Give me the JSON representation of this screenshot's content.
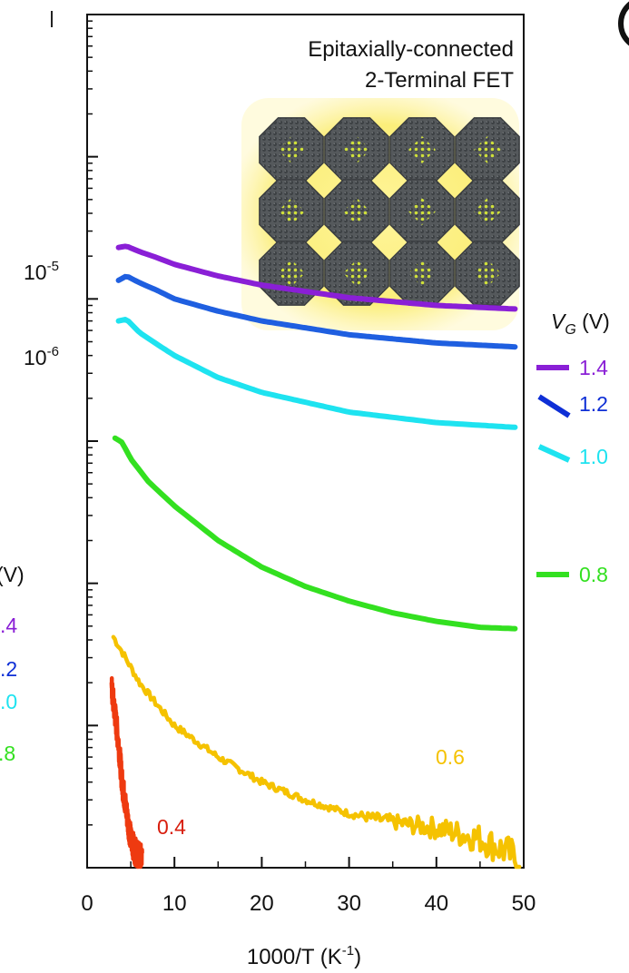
{
  "chart_data": {
    "type": "line",
    "title": "",
    "xlabel": "1000/T (K",
    "xlabel_sup": "-1",
    "xlabel_end": ")",
    "ylabel": "",
    "xlim": [
      0,
      50
    ],
    "y_scale": "log",
    "ylim": [
      1e-10,
      0.0001
    ],
    "x_ticks": [
      {
        "value": 0,
        "label": "0"
      },
      {
        "value": 10,
        "label": "10"
      },
      {
        "value": 20,
        "label": "20"
      },
      {
        "value": 30,
        "label": "30"
      },
      {
        "value": 40,
        "label": "40"
      },
      {
        "value": 50,
        "label": "50"
      }
    ],
    "y_ticks_labeled": [
      {
        "value": 1e-05,
        "base": "10",
        "exp": "-5"
      },
      {
        "value": 1e-06,
        "base": "10",
        "exp": "-6"
      }
    ],
    "y_decades": [
      1e-10,
      1e-09,
      1e-08,
      1e-07,
      1e-06,
      1e-05,
      0.0001
    ],
    "grid": false,
    "inset_caption": [
      "Epitaxially-connected",
      "2-Terminal FET"
    ],
    "legend_title": {
      "main": "V",
      "sub": "G",
      "unit": " (V)"
    },
    "legend_placement": "right-outside",
    "series": [
      {
        "name": "1.4",
        "color": "#8a1fd6",
        "noise": 0,
        "x": [
          3.6,
          4.5,
          6,
          8,
          10,
          15,
          20,
          30,
          40,
          49
        ],
        "y": [
          2.3e-06,
          2.35e-06,
          2.15e-06,
          1.95e-06,
          1.75e-06,
          1.45e-06,
          1.25e-06,
          1.02e-06,
          9e-07,
          8.5e-07
        ]
      },
      {
        "name": "1.2",
        "color": "#1f5fe0",
        "legend_color": "#0e2fd6",
        "noise": 0,
        "x": [
          3.6,
          4.5,
          6,
          8,
          10,
          15,
          20,
          30,
          40,
          49
        ],
        "y": [
          1.35e-06,
          1.45e-06,
          1.3e-06,
          1.15e-06,
          1e-06,
          8.2e-07,
          7e-07,
          5.6e-07,
          4.9e-07,
          4.6e-07
        ]
      },
      {
        "name": "1.0",
        "color": "#1ee3f0",
        "noise": 0,
        "x": [
          3.6,
          4.5,
          6,
          8,
          10,
          15,
          20,
          30,
          40,
          49
        ],
        "y": [
          7e-07,
          7.2e-07,
          5.8e-07,
          4.8e-07,
          4e-07,
          2.8e-07,
          2.2e-07,
          1.6e-07,
          1.35e-07,
          1.25e-07
        ]
      },
      {
        "name": "0.8",
        "color": "#33e020",
        "noise": 0,
        "x": [
          3.2,
          4,
          5,
          7,
          10,
          15,
          20,
          25,
          30,
          35,
          40,
          45,
          49
        ],
        "y": [
          1.05e-07,
          9.8e-08,
          7.5e-08,
          5.2e-08,
          3.5e-08,
          2e-08,
          1.3e-08,
          9.5e-09,
          7.5e-09,
          6.2e-09,
          5.4e-09,
          4.9e-09,
          4.8e-09
        ]
      },
      {
        "name": "0.6",
        "color": "#f5c200",
        "noise": 0.06,
        "x": [
          3.0,
          4,
          6,
          8,
          10,
          15,
          20,
          25,
          30,
          35,
          37,
          40,
          45,
          48,
          49.5
        ],
        "y": [
          4.2e-09,
          3.3e-09,
          2e-09,
          1.4e-09,
          1e-09,
          6e-10,
          4e-10,
          3e-10,
          2.4e-10,
          2.1e-10,
          2e-10,
          1.9e-10,
          1.6e-10,
          1.3e-10,
          1.1e-10
        ]
      },
      {
        "name": "0.4",
        "color": "#ee3a10",
        "noise": 0.08,
        "x": [
          2.8,
          3.2,
          3.6,
          4.0,
          4.5,
          5.0,
          5.5,
          6.0,
          6.3
        ],
        "y": [
          1.8e-09,
          1.2e-09,
          7.5e-10,
          4e-10,
          2.5e-10,
          1.6e-10,
          1.3e-10,
          1.2e-10,
          1.15e-10
        ]
      }
    ],
    "series_labels": [
      {
        "series": "0.6",
        "text": "0.6",
        "color": "#f5c200",
        "at": [
          43,
          1.65e-09
        ]
      },
      {
        "series": "0.4",
        "text": "0.4",
        "color": "#d81e0e",
        "at": [
          8,
          3.6e-10
        ]
      }
    ],
    "left_partial_legend": {
      "title": "(V)",
      "items": [
        {
          "text": ".4",
          "color": "#8a1fd6"
        },
        {
          "text": ".2",
          "color": "#0e2fd6"
        },
        {
          "text": ".0",
          "color": "#1ee3f0"
        },
        {
          "text": ".8",
          "color": "#33e020"
        }
      ]
    }
  }
}
